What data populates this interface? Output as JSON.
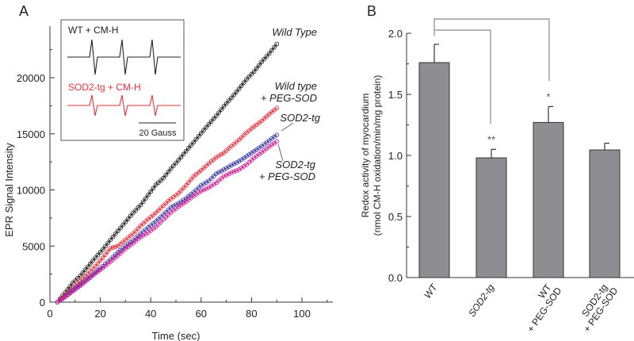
{
  "chart_data": [
    {
      "type": "scatter",
      "panel_label": "A",
      "xlabel": "Time (sec)",
      "ylabel": "EPR Signal Intensity",
      "xlim": [
        0,
        112
      ],
      "ylim": [
        0,
        24500
      ],
      "xticks": [
        "0",
        "20",
        "40",
        "60",
        "80",
        "100"
      ],
      "yticks": [
        "0",
        "5000",
        "10000",
        "15000",
        "20000"
      ],
      "x": [
        3,
        6,
        9,
        12,
        15,
        18,
        21,
        24,
        27,
        30,
        33,
        36,
        39,
        42,
        45,
        48,
        51,
        54,
        57,
        60,
        63,
        66,
        69,
        72,
        75,
        78,
        81,
        84,
        87,
        90
      ],
      "series": [
        {
          "name": "Wild Type",
          "label": [
            "Wild Type"
          ],
          "color": "#222222",
          "values": [
            0,
            850,
            1700,
            2350,
            3150,
            3950,
            4700,
            5550,
            6350,
            7150,
            7950,
            8650,
            9550,
            10450,
            11050,
            11900,
            12650,
            13450,
            14250,
            15050,
            15850,
            16600,
            17450,
            18200,
            19000,
            19850,
            20550,
            21400,
            22150,
            23000
          ]
        },
        {
          "name": "Wild type + PEG-SOD",
          "label": [
            "Wild type",
            "+ PEG-SOD"
          ],
          "color": "#e8303a",
          "values": [
            0,
            600,
            1250,
            1850,
            2500,
            3200,
            3950,
            4800,
            5000,
            5550,
            6100,
            6800,
            7400,
            7950,
            8600,
            9200,
            9700,
            10400,
            11200,
            11750,
            12350,
            12900,
            13300,
            13900,
            14450,
            15100,
            15650,
            16150,
            16750,
            17300
          ]
        },
        {
          "name": "SOD2-tg",
          "label": [
            "SOD2-tg"
          ],
          "color": "#3a3aa8",
          "values": [
            0,
            500,
            1050,
            1550,
            2100,
            2650,
            3200,
            3800,
            4450,
            5000,
            5500,
            6100,
            6650,
            7200,
            7800,
            8450,
            8800,
            9250,
            9800,
            10400,
            10800,
            11450,
            11800,
            12200,
            12550,
            13000,
            13450,
            13900,
            14400,
            14900
          ]
        },
        {
          "name": "SOD2-tg + PEG-SOD",
          "label": [
            "SOD2-tg",
            "+ PEG-SOD"
          ],
          "color": "#d0209a",
          "values": [
            0,
            450,
            950,
            1450,
            2000,
            2550,
            3050,
            3600,
            4150,
            4750,
            5250,
            5800,
            6200,
            6700,
            7350,
            8000,
            8500,
            8950,
            9450,
            9900,
            10200,
            10650,
            11200,
            11550,
            11800,
            12250,
            12850,
            13350,
            13850,
            14300
          ]
        }
      ],
      "inset": {
        "traces": [
          {
            "label": "WT + CM-H",
            "color": "#222222"
          },
          {
            "label": "SOD2-tg + CM-H",
            "color": "#e8303a"
          }
        ],
        "scale_bar": "20 Gauss"
      }
    },
    {
      "type": "bar",
      "panel_label": "B",
      "ylabel": [
        "Redox activity of myocardium",
        "(nmol CM-H oxidation/min/mg protein)"
      ],
      "ylim": [
        0,
        2.0
      ],
      "yticks": [
        "0.0",
        "0.5",
        "1.0",
        "1.5",
        "2.0"
      ],
      "categories": [
        [
          "WT"
        ],
        [
          "SOD2-tg"
        ],
        [
          "WT",
          "+ PEG-SOD"
        ],
        [
          "SOD2-tg",
          "+ PEG-SOD"
        ]
      ],
      "values": [
        1.76,
        0.98,
        1.27,
        1.045
      ],
      "errors": [
        0.15,
        0.07,
        0.13,
        0.055
      ],
      "significance": [
        "",
        "**",
        "*",
        ""
      ],
      "bar_color": "#8e8e92"
    }
  ]
}
